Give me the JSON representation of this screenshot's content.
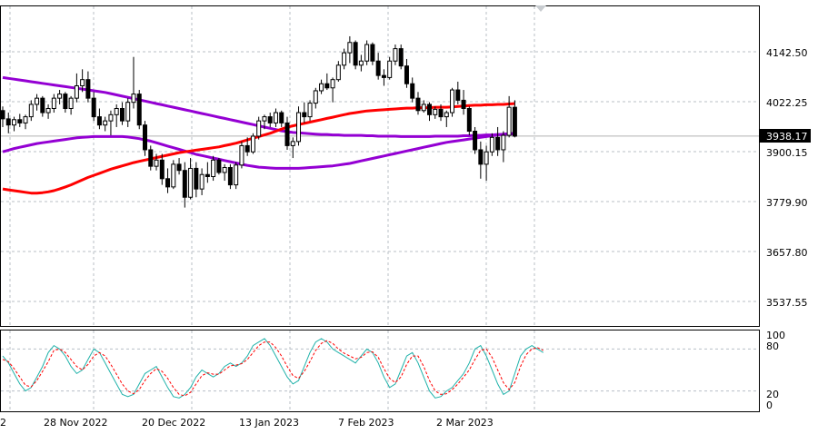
{
  "colors": {
    "background": "#ffffff",
    "candle_body_up": "#ffffff",
    "candle_body_down": "#000000",
    "candle_outline": "#000000",
    "ma_fast": "#ff0000",
    "ma_slow": "#9400d3",
    "stoch_main": "#20b2aa",
    "stoch_signal": "#ff0000",
    "current_price_line": "#b0b0b0",
    "price_tag_bg": "#000000",
    "grid": "#b8bfc6"
  },
  "chart_data": [
    {
      "type": "candlestick",
      "panel": "price",
      "y_ticks": [
        "4142.50",
        "4022.25",
        "3900.15",
        "3779.90",
        "3657.80",
        "3537.55"
      ],
      "ylim": [
        3480,
        4210
      ],
      "current_price": "3938.17",
      "x_tick_labels": [
        "2",
        "28 Nov 2022",
        "20 Dec 2022",
        "13 Jan 2023",
        "7 Feb 2023",
        "2 Mar 2023"
      ],
      "grid": true,
      "candles": [
        [
          4000,
          4010,
          3960,
          3980
        ],
        [
          3980,
          3995,
          3945,
          3965
        ],
        [
          3965,
          3985,
          3950,
          3978
        ],
        [
          3978,
          3992,
          3960,
          3970
        ],
        [
          3970,
          3990,
          3955,
          3985
        ],
        [
          3985,
          4025,
          3975,
          4015
        ],
        [
          4015,
          4040,
          4000,
          4030
        ],
        [
          4030,
          4035,
          3985,
          3995
        ],
        [
          3995,
          4015,
          3980,
          4005
        ],
        [
          4005,
          4040,
          3995,
          4030
        ],
        [
          4030,
          4050,
          4015,
          4040
        ],
        [
          4040,
          4045,
          3995,
          4005
        ],
        [
          4005,
          4035,
          3990,
          4030
        ],
        [
          4030,
          4090,
          4020,
          4060
        ],
        [
          4060,
          4100,
          4045,
          4075
        ],
        [
          4075,
          4095,
          4020,
          4030
        ],
        [
          4030,
          4045,
          3975,
          3985
        ],
        [
          3985,
          4005,
          3955,
          3965
        ],
        [
          3965,
          3985,
          3950,
          3975
        ],
        [
          3975,
          4000,
          3940,
          3990
        ],
        [
          3990,
          4015,
          3960,
          4005
        ],
        [
          4005,
          4020,
          3965,
          3975
        ],
        [
          3975,
          4030,
          3960,
          4020
        ],
        [
          4020,
          4130,
          4005,
          4040
        ],
        [
          4040,
          4050,
          3955,
          3965
        ],
        [
          3965,
          3975,
          3890,
          3905
        ],
        [
          3905,
          3915,
          3855,
          3865
        ],
        [
          3865,
          3895,
          3855,
          3880
        ],
        [
          3880,
          3895,
          3820,
          3835
        ],
        [
          3835,
          3860,
          3800,
          3815
        ],
        [
          3815,
          3880,
          3810,
          3870
        ],
        [
          3870,
          3885,
          3845,
          3855
        ],
        [
          3855,
          3875,
          3765,
          3790
        ],
        [
          3790,
          3885,
          3785,
          3860
        ],
        [
          3860,
          3875,
          3790,
          3810
        ],
        [
          3810,
          3860,
          3795,
          3845
        ],
        [
          3845,
          3875,
          3825,
          3840
        ],
        [
          3840,
          3890,
          3830,
          3880
        ],
        [
          3880,
          3885,
          3845,
          3850
        ],
        [
          3850,
          3870,
          3830,
          3862
        ],
        [
          3862,
          3870,
          3810,
          3820
        ],
        [
          3820,
          3875,
          3810,
          3868
        ],
        [
          3868,
          3925,
          3860,
          3915
        ],
        [
          3915,
          3935,
          3890,
          3900
        ],
        [
          3900,
          3945,
          3895,
          3938
        ],
        [
          3938,
          3985,
          3930,
          3975
        ],
        [
          3975,
          3990,
          3955,
          3985
        ],
        [
          3985,
          3995,
          3960,
          3970
        ],
        [
          3970,
          4005,
          3960,
          3995
        ],
        [
          3995,
          4000,
          3960,
          3970
        ],
        [
          3970,
          3985,
          3905,
          3915
        ],
        [
          3915,
          3935,
          3885,
          3925
        ],
        [
          3925,
          4010,
          3915,
          3995
        ],
        [
          3995,
          4020,
          3970,
          3985
        ],
        [
          3985,
          4025,
          3975,
          4018
        ],
        [
          4018,
          4055,
          4005,
          4048
        ],
        [
          4048,
          4075,
          4040,
          4065
        ],
        [
          4065,
          4090,
          4050,
          4055
        ],
        [
          4055,
          4080,
          4020,
          4075
        ],
        [
          4075,
          4120,
          4070,
          4110
        ],
        [
          4110,
          4150,
          4100,
          4140
        ],
        [
          4140,
          4180,
          4115,
          4165
        ],
        [
          4165,
          4170,
          4100,
          4110
        ],
        [
          4110,
          4135,
          4095,
          4120
        ],
        [
          4120,
          4170,
          4110,
          4160
        ],
        [
          4160,
          4165,
          4110,
          4120
        ],
        [
          4120,
          4140,
          4075,
          4085
        ],
        [
          4085,
          4100,
          4060,
          4080
        ],
        [
          4080,
          4130,
          4075,
          4120
        ],
        [
          4120,
          4160,
          4110,
          4150
        ],
        [
          4150,
          4160,
          4100,
          4108
        ],
        [
          4108,
          4125,
          4055,
          4065
        ],
        [
          4065,
          4080,
          4020,
          4030
        ],
        [
          4030,
          4045,
          3990,
          4000
        ],
        [
          4000,
          4025,
          3995,
          4015
        ],
        [
          4015,
          4020,
          3975,
          3990
        ],
        [
          3990,
          4010,
          3980,
          4003
        ],
        [
          4003,
          4015,
          3975,
          3985
        ],
        [
          3985,
          4000,
          3960,
          3995
        ],
        [
          3995,
          4055,
          3985,
          4050
        ],
        [
          4050,
          4070,
          4015,
          4025
        ],
        [
          4025,
          4050,
          3990,
          4005
        ],
        [
          4005,
          4010,
          3940,
          3950
        ],
        [
          3950,
          3960,
          3895,
          3905
        ],
        [
          3905,
          3925,
          3835,
          3870
        ],
        [
          3870,
          3915,
          3830,
          3900
        ],
        [
          3900,
          3945,
          3890,
          3935
        ],
        [
          3935,
          3960,
          3890,
          3905
        ],
        [
          3905,
          3950,
          3875,
          3940
        ],
        [
          3940,
          4035,
          3935,
          4008
        ],
        [
          4008,
          4025,
          3935,
          3938
        ]
      ],
      "ma_fast_points": [
        3810,
        3808,
        3806,
        3804,
        3802,
        3800,
        3800,
        3801,
        3803,
        3806,
        3810,
        3815,
        3820,
        3826,
        3832,
        3838,
        3843,
        3848,
        3853,
        3858,
        3862,
        3866,
        3870,
        3874,
        3877,
        3880,
        3883,
        3886,
        3889,
        3892,
        3895,
        3898,
        3900,
        3902,
        3904,
        3906,
        3908,
        3910,
        3912,
        3915,
        3918,
        3921,
        3925,
        3929,
        3933,
        3937,
        3941,
        3945,
        3950,
        3955,
        3960,
        3963,
        3966,
        3969,
        3972,
        3975,
        3978,
        3981,
        3984,
        3987,
        3990,
        3993,
        3995,
        3997,
        3999,
        4000,
        4001,
        4002,
        4003,
        4004,
        4005,
        4006,
        4006,
        4007,
        4007,
        4007,
        4008,
        4008,
        4008,
        4009,
        4010,
        4011,
        4012,
        4013,
        4013,
        4014,
        4014,
        4015,
        4015,
        4016,
        4017
      ],
      "ma_slow_points": [
        4080,
        4078,
        4076,
        4074,
        4072,
        4070,
        4068,
        4066,
        4064,
        4062,
        4060,
        4058,
        4056,
        4054,
        4052,
        4050,
        4048,
        4046,
        4044,
        4041,
        4038,
        4035,
        4032,
        4029,
        4026,
        4023,
        4020,
        4017,
        4014,
        4011,
        4008,
        4005,
        4002,
        3999,
        3996,
        3993,
        3990,
        3987,
        3984,
        3981,
        3978,
        3975,
        3972,
        3969,
        3966,
        3963,
        3960,
        3957,
        3954,
        3951,
        3949,
        3947,
        3946,
        3945,
        3944,
        3943,
        3942,
        3942,
        3941,
        3941,
        3940,
        3940,
        3940,
        3940,
        3939,
        3939,
        3938,
        3938,
        3938,
        3938,
        3937,
        3937,
        3937,
        3937,
        3937,
        3937,
        3938,
        3938,
        3938,
        3938,
        3938,
        3939,
        3939,
        3940,
        3940,
        3941,
        3941,
        3942,
        3942,
        3943,
        3944
      ],
      "ma_third_points": [
        3900,
        3904,
        3908,
        3911,
        3914,
        3917,
        3920,
        3922,
        3924,
        3926,
        3928,
        3930,
        3932,
        3934,
        3935,
        3936,
        3937,
        3937,
        3937,
        3937,
        3937,
        3937,
        3936,
        3934,
        3932,
        3929,
        3926,
        3922,
        3918,
        3914,
        3910,
        3906,
        3902,
        3898,
        3894,
        3891,
        3888,
        3885,
        3882,
        3879,
        3876,
        3873,
        3870,
        3867,
        3865,
        3863,
        3862,
        3861,
        3860,
        3860,
        3860,
        3860,
        3860,
        3861,
        3862,
        3863,
        3864,
        3865,
        3866,
        3868,
        3870,
        3872,
        3875,
        3878,
        3881,
        3884,
        3887,
        3890,
        3893,
        3896,
        3899,
        3902,
        3905,
        3908,
        3911,
        3914,
        3917,
        3920,
        3923,
        3925,
        3927,
        3929,
        3931,
        3933,
        3935,
        3937,
        3939,
        3941,
        3943,
        3944,
        3945
      ]
    },
    {
      "type": "line",
      "panel": "stochastic",
      "y_ticks": [
        "100",
        "80",
        "20",
        "0"
      ],
      "ylim": [
        0,
        100
      ],
      "grid": true,
      "series_main": [
        70,
        60,
        45,
        30,
        20,
        25,
        40,
        55,
        75,
        85,
        80,
        70,
        55,
        45,
        50,
        65,
        80,
        75,
        60,
        45,
        30,
        15,
        12,
        15,
        30,
        45,
        50,
        55,
        40,
        25,
        12,
        10,
        15,
        25,
        40,
        50,
        45,
        40,
        45,
        55,
        60,
        55,
        60,
        70,
        85,
        90,
        95,
        85,
        70,
        55,
        40,
        30,
        35,
        55,
        75,
        90,
        95,
        90,
        80,
        75,
        70,
        65,
        60,
        70,
        80,
        75,
        60,
        40,
        25,
        30,
        50,
        70,
        75,
        60,
        40,
        20,
        10,
        12,
        20,
        25,
        35,
        45,
        60,
        80,
        85,
        70,
        50,
        30,
        15,
        20,
        45,
        70,
        80,
        85,
        80,
        75
      ],
      "series_signal": [
        65,
        62,
        52,
        40,
        28,
        26,
        35,
        48,
        62,
        78,
        80,
        75,
        65,
        55,
        50,
        58,
        70,
        75,
        70,
        58,
        44,
        30,
        20,
        16,
        22,
        35,
        45,
        52,
        48,
        38,
        25,
        15,
        13,
        18,
        30,
        42,
        46,
        44,
        44,
        50,
        56,
        57,
        59,
        65,
        75,
        85,
        90,
        90,
        82,
        70,
        55,
        42,
        38,
        48,
        62,
        78,
        88,
        92,
        88,
        80,
        74,
        70,
        66,
        68,
        75,
        76,
        68,
        52,
        38,
        32,
        40,
        58,
        70,
        70,
        55,
        35,
        20,
        15,
        16,
        22,
        30,
        40,
        50,
        65,
        78,
        80,
        68,
        50,
        32,
        22,
        32,
        55,
        72,
        80,
        82,
        78
      ]
    }
  ]
}
